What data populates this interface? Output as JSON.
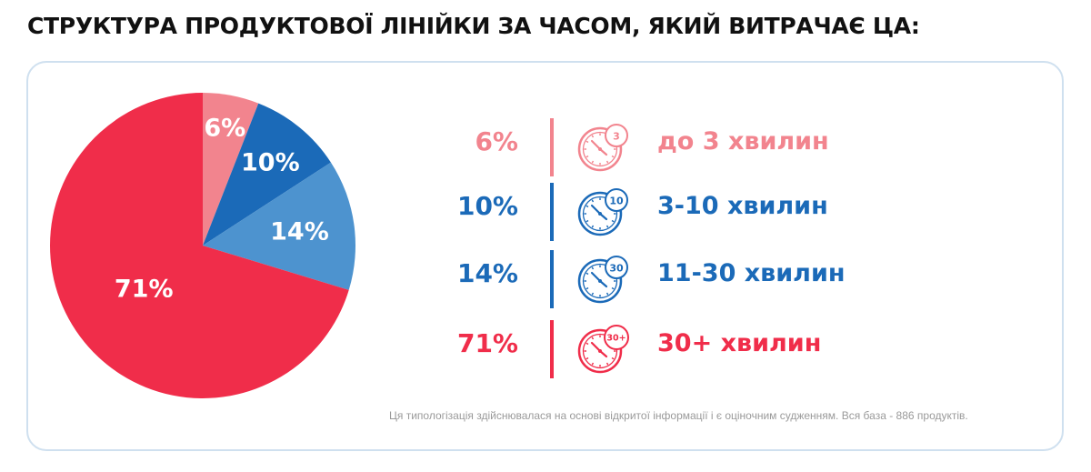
{
  "title": "СТРУКТУРА ПРОДУКТОВОЇ ЛІНІЙКИ ЗА ЧАСОМ, ЯКИЙ ВИТРАЧАЄ ЦА:",
  "chart_data": {
    "type": "pie",
    "title": "СТРУКТУРА ПРОДУКТОВОЇ ЛІНІЙКИ ЗА ЧАСОМ, ЯКИЙ ВИТРАЧАЄ ЦА:",
    "categories": [
      "до 3 хвилин",
      "3-10 хвилин",
      "11-30 хвилин",
      "30+ хвилин"
    ],
    "values": [
      6,
      10,
      14,
      71
    ],
    "labels": [
      "6%",
      "10%",
      "14%",
      "71%"
    ],
    "colors": [
      "#f2848e",
      "#1b6ab8",
      "#4d93cf",
      "#f02d4a"
    ],
    "legend_position": "right"
  },
  "legend": [
    {
      "pct": "6%",
      "label": "до 3 хвилин",
      "badge": "3",
      "color": "#f2848e",
      "icon": "clock-3-icon"
    },
    {
      "pct": "10%",
      "label": "3-10 хвилин",
      "badge": "10",
      "color": "#1b6ab8",
      "icon": "clock-10-icon"
    },
    {
      "pct": "14%",
      "label": "11-30 хвилин",
      "badge": "30",
      "color": "#1b6ab8",
      "icon": "clock-30-icon"
    },
    {
      "pct": "71%",
      "label": "30+ хвилин",
      "badge": "30+",
      "color": "#f02d4a",
      "icon": "clock-30plus-icon"
    }
  ],
  "footnote": "Ця типологізація здійснювалася на основі відкритої інформації і є оціночним судженням. Вся база - 886 продуктів."
}
